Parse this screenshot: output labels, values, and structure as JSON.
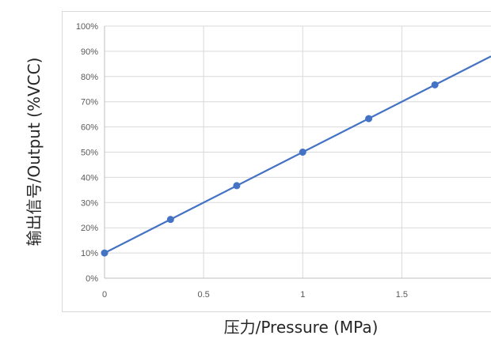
{
  "chart_data": {
    "type": "line",
    "title": "",
    "xlabel": "压力/Pressure (MPa)",
    "ylabel": "输出信号/Output (%VCC)",
    "xlim": [
      0,
      1.95
    ],
    "ylim": [
      0,
      100
    ],
    "x_ticks": [
      0,
      0.5,
      1,
      1.5
    ],
    "x_tick_labels": [
      "0",
      "0.5",
      "1",
      "1.5"
    ],
    "y_ticks": [
      0,
      10,
      20,
      30,
      40,
      50,
      60,
      70,
      80,
      90,
      100
    ],
    "y_tick_labels": [
      "0%",
      "10%",
      "20%",
      "30%",
      "40%",
      "50%",
      "60%",
      "70%",
      "80%",
      "90%",
      "100%"
    ],
    "grid": true,
    "legend": "none",
    "line_color": "#4472C4",
    "series": [
      {
        "x": [
          0,
          0.333,
          0.667,
          1.0,
          1.333,
          1.667
        ],
        "y": [
          10,
          23.3,
          36.7,
          50,
          63.3,
          76.7
        ]
      }
    ],
    "trend_line": {
      "slope": 40,
      "intercept": 10,
      "x_end": 1.95
    }
  }
}
